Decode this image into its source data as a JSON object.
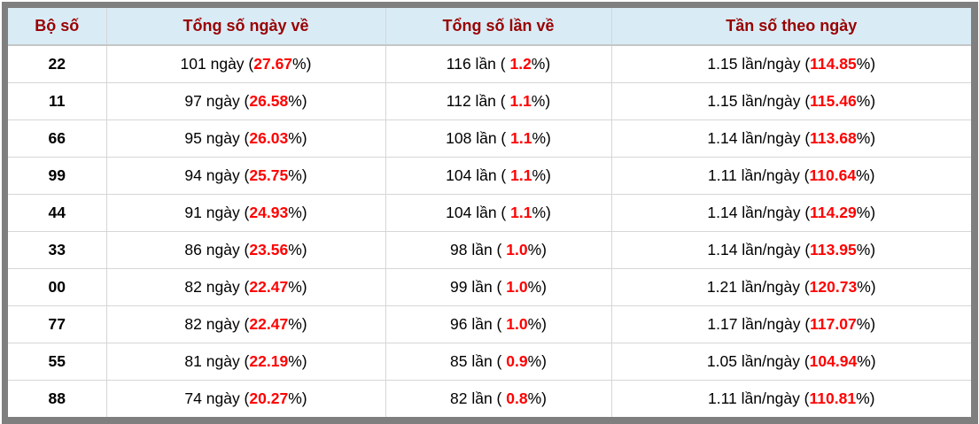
{
  "colors": {
    "header_bg": "#d9ecf6",
    "header_text": "#990000",
    "accent_red": "#ff0000",
    "frame_gray": "#7f7f7f",
    "grid_line": "#d6d6d6"
  },
  "table": {
    "columns": [
      {
        "label": "Bộ số"
      },
      {
        "label": "Tổng số ngày về"
      },
      {
        "label": "Tổng số lần về"
      },
      {
        "label": "Tần số theo ngày"
      }
    ],
    "units": {
      "day": "ngày",
      "time": "lần",
      "freq": "lần/ngày"
    },
    "rows": [
      {
        "pair": "22",
        "days": "101",
        "days_pct": "27.67",
        "times": "116",
        "times_pct": "1.2",
        "freq": "1.15",
        "freq_pct": "114.85"
      },
      {
        "pair": "11",
        "days": "97",
        "days_pct": "26.58",
        "times": "112",
        "times_pct": "1.1",
        "freq": "1.15",
        "freq_pct": "115.46"
      },
      {
        "pair": "66",
        "days": "95",
        "days_pct": "26.03",
        "times": "108",
        "times_pct": "1.1",
        "freq": "1.14",
        "freq_pct": "113.68"
      },
      {
        "pair": "99",
        "days": "94",
        "days_pct": "25.75",
        "times": "104",
        "times_pct": "1.1",
        "freq": "1.11",
        "freq_pct": "110.64"
      },
      {
        "pair": "44",
        "days": "91",
        "days_pct": "24.93",
        "times": "104",
        "times_pct": "1.1",
        "freq": "1.14",
        "freq_pct": "114.29"
      },
      {
        "pair": "33",
        "days": "86",
        "days_pct": "23.56",
        "times": "98",
        "times_pct": "1.0",
        "freq": "1.14",
        "freq_pct": "113.95"
      },
      {
        "pair": "00",
        "days": "82",
        "days_pct": "22.47",
        "times": "99",
        "times_pct": "1.0",
        "freq": "1.21",
        "freq_pct": "120.73"
      },
      {
        "pair": "77",
        "days": "82",
        "days_pct": "22.47",
        "times": "96",
        "times_pct": "1.0",
        "freq": "1.17",
        "freq_pct": "117.07"
      },
      {
        "pair": "55",
        "days": "81",
        "days_pct": "22.19",
        "times": "85",
        "times_pct": "0.9",
        "freq": "1.05",
        "freq_pct": "104.94"
      },
      {
        "pair": "88",
        "days": "74",
        "days_pct": "20.27",
        "times": "82",
        "times_pct": "0.8",
        "freq": "1.11",
        "freq_pct": "110.81"
      }
    ]
  }
}
